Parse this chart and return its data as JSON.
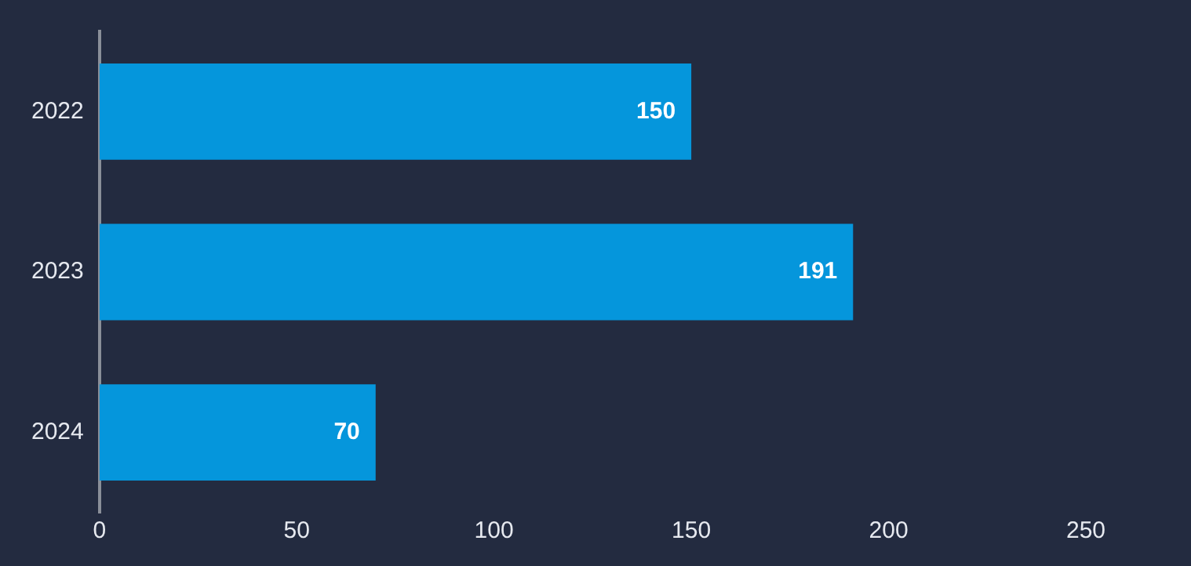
{
  "chart_data": {
    "type": "bar",
    "orientation": "horizontal",
    "categories": [
      "2022",
      "2023",
      "2024"
    ],
    "values": [
      150,
      191,
      70
    ],
    "color": "#0596dc",
    "xlim": [
      0,
      250
    ],
    "xticks": [
      0,
      50,
      100,
      150,
      200,
      250
    ],
    "grid": false,
    "legend": false,
    "data_labels": true
  }
}
